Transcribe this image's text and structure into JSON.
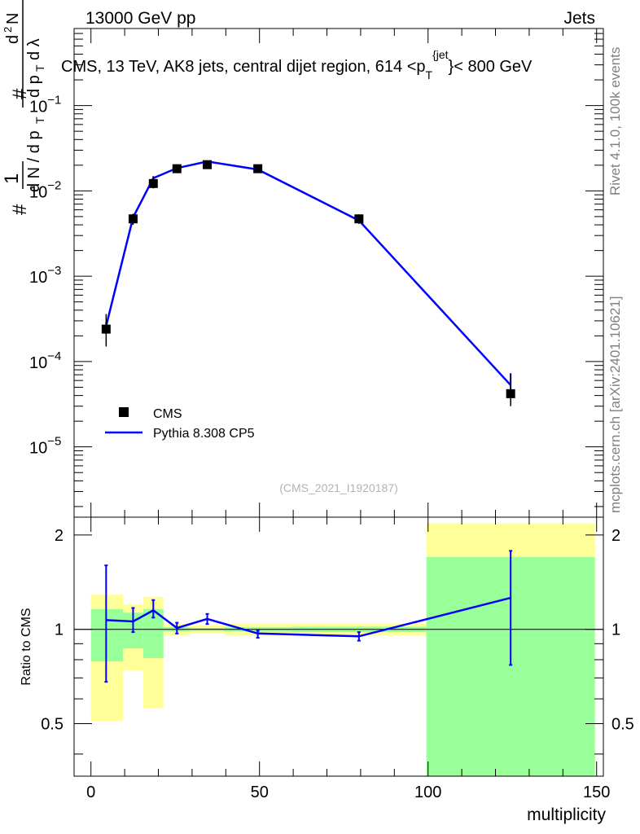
{
  "header": {
    "left": "13000 GeV pp",
    "right": "Jets"
  },
  "side_text": {
    "rivet": "Rivet 4.1.0,  100k events",
    "mcplots": "mcplots.cern.ch [arXiv:2401.10621]"
  },
  "colors": {
    "cms": "#000000",
    "pythia": "#0000ff",
    "band_inner": "#99ff99",
    "band_outer": "#ffff99"
  },
  "chart_data": [
    {
      "type": "scatter",
      "panel": "main",
      "title": "CMS, 13 TeV, AK8 jets, central dijet region, 614 <p",
      "title_sub": "T",
      "title_sup": "{jet",
      "title_end": "}< 800 GeV",
      "yscale": "log",
      "ylim": [
        1.5e-06,
        0.8
      ],
      "xlim": [
        -5,
        152
      ],
      "ylabel": "d²N / d p_T dλ",
      "ytick_labels": [
        {
          "base": "10",
          "exp": "−1",
          "value": 0.1
        },
        {
          "base": "10",
          "exp": "−2",
          "value": 0.01
        },
        {
          "base": "10",
          "exp": "−3",
          "value": 0.001
        },
        {
          "base": "10",
          "exp": "−4",
          "value": 0.0001
        },
        {
          "base": "10",
          "exp": "−5",
          "value": 1e-05
        }
      ],
      "watermark": "(CMS_2021_I1920187)",
      "legend": [
        "CMS",
        "Pythia 8.308 CP5"
      ],
      "legend_position": "bottom-left",
      "series": [
        {
          "name": "CMS",
          "marker": "square",
          "x": [
            4.5,
            12.5,
            18.5,
            25.5,
            34.5,
            49.5,
            79.5,
            124.5
          ],
          "y": [
            0.00024,
            0.0047,
            0.0122,
            0.0182,
            0.0203,
            0.0182,
            0.0047,
            4.2e-05
          ],
          "yerr_low": [
            9e-05,
            0.0007,
            0.0015,
            0.0015,
            0.0015,
            0.0013,
            0.0006,
            1.2e-05
          ],
          "yerr_high": [
            0.00012,
            0.0007,
            0.0025,
            0.0015,
            0.0015,
            0.0013,
            0.0006,
            3e-05
          ]
        },
        {
          "name": "Pythia 8.308 CP5",
          "line": true,
          "x": [
            4.5,
            12.5,
            18.5,
            25.5,
            34.5,
            49.5,
            79.5,
            124.5
          ],
          "y": [
            0.00026,
            0.0049,
            0.0141,
            0.0185,
            0.0221,
            0.0178,
            0.0045,
            5.3e-05
          ],
          "yerr_low": [
            3e-05,
            0.0003,
            0.0008,
            0.0006,
            0.0006,
            0.0005,
            0.0002,
            1e-05
          ],
          "yerr_high": [
            3e-05,
            0.0003,
            0.0008,
            0.0006,
            0.0006,
            0.0005,
            0.0002,
            2e-05
          ]
        }
      ]
    },
    {
      "type": "line",
      "panel": "ratio",
      "ylabel": "Ratio to CMS",
      "xlabel": "multiplicity",
      "ylim": [
        0.34,
        2.28
      ],
      "xlim": [
        -5,
        152
      ],
      "yticks": [
        0.5,
        1,
        2
      ],
      "ytick_labels": [
        "0.5",
        "1",
        "2"
      ],
      "xticks": [
        0,
        50,
        100,
        150
      ],
      "xtick_labels": [
        "0",
        "50",
        "100",
        "150"
      ],
      "reference": 1,
      "bands": [
        {
          "x0": 0,
          "x1": 9.5,
          "inner": [
            0.79,
            1.16
          ],
          "outer": [
            0.51,
            1.29
          ]
        },
        {
          "x0": 9.5,
          "x1": 15.5,
          "inner": [
            0.87,
            1.13
          ],
          "outer": [
            0.74,
            1.2
          ]
        },
        {
          "x0": 15.5,
          "x1": 21.5,
          "inner": [
            0.81,
            1.16
          ],
          "outer": [
            0.56,
            1.27
          ]
        },
        {
          "x0": 21.5,
          "x1": 29.5,
          "inner": [
            0.985,
            1.015
          ],
          "outer": [
            0.955,
            1.04
          ]
        },
        {
          "x0": 29.5,
          "x1": 39.5,
          "inner": [
            0.99,
            1.01
          ],
          "outer": [
            0.97,
            1.03
          ]
        },
        {
          "x0": 39.5,
          "x1": 59.5,
          "inner": [
            0.985,
            1.015
          ],
          "outer": [
            0.955,
            1.045
          ]
        },
        {
          "x0": 59.5,
          "x1": 99.5,
          "inner": [
            0.98,
            1.02
          ],
          "outer": [
            0.955,
            1.045
          ]
        },
        {
          "x0": 99.5,
          "x1": 149.5,
          "inner": [
            0.34,
            1.7
          ],
          "outer": [
            0.34,
            2.18
          ]
        }
      ],
      "series": [
        {
          "name": "Pythia 8.308 CP5",
          "x": [
            4.5,
            12.5,
            18.5,
            25.5,
            34.5,
            49.5,
            79.5,
            124.5
          ],
          "y": [
            1.07,
            1.06,
            1.15,
            1.01,
            1.08,
            0.97,
            0.95,
            1.26
          ],
          "yerr_low": [
            0.39,
            0.08,
            0.06,
            0.04,
            0.04,
            0.03,
            0.03,
            0.49
          ],
          "yerr_high": [
            0.53,
            0.11,
            0.09,
            0.04,
            0.04,
            0.02,
            0.03,
            0.52
          ]
        }
      ]
    }
  ]
}
